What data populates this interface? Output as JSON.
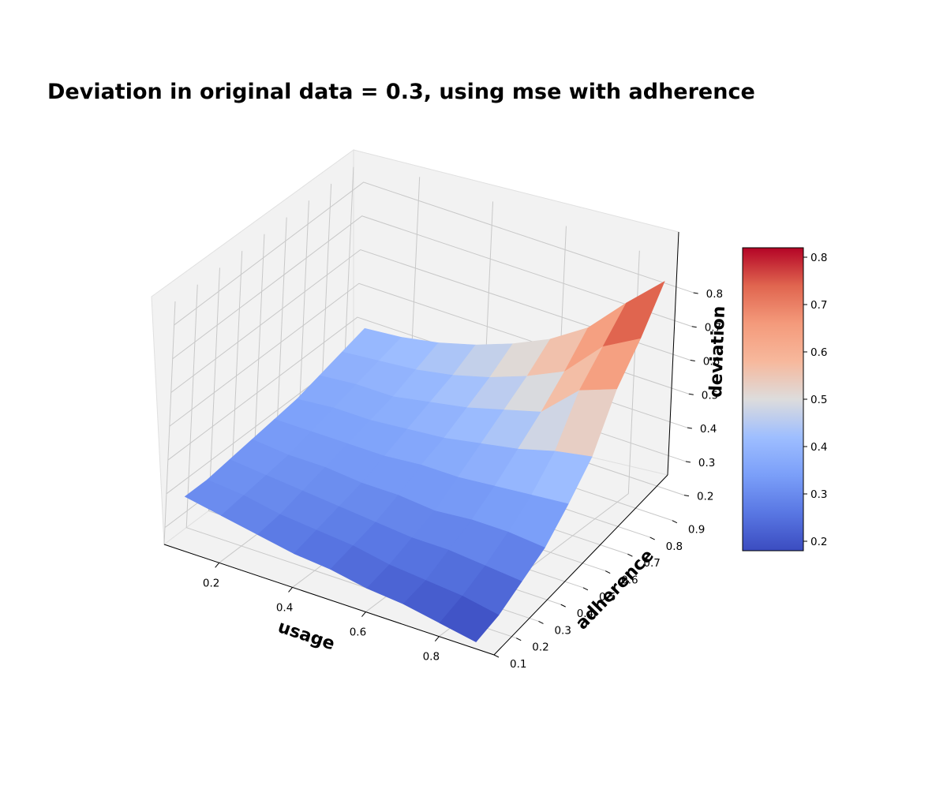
{
  "chart_data": {
    "type": "surface3d",
    "title": "Deviation in original data = 0.3, using mse with adherence",
    "xlabel": "usage",
    "ylabel": "adherence",
    "zlabel": "deviation",
    "colormap": "coolwarm",
    "grid": true,
    "colorbar": {
      "placement": "right",
      "range": [
        0.18,
        0.82
      ],
      "ticks": [
        "0.2",
        "0.3",
        "0.4",
        "0.5",
        "0.6",
        "0.7",
        "0.8"
      ]
    },
    "x_ticks": [
      "0.2",
      "0.4",
      "0.6",
      "0.8"
    ],
    "y_ticks": [
      "0.1",
      "0.2",
      "0.3",
      "0.4",
      "0.5",
      "0.6",
      "0.7",
      "0.8",
      "0.9"
    ],
    "z_ticks": [
      "0.2",
      "0.3",
      "0.4",
      "0.5",
      "0.6",
      "0.7",
      "0.8"
    ],
    "xlim": [
      0.05,
      0.95
    ],
    "ylim": [
      0.1,
      0.95
    ],
    "zlim": [
      0.15,
      0.87
    ],
    "usage": [
      0.1,
      0.2,
      0.3,
      0.4,
      0.5,
      0.6,
      0.7,
      0.8,
      0.9
    ],
    "adherence": [
      0.1,
      0.2,
      0.3,
      0.4,
      0.5,
      0.6,
      0.7,
      0.8,
      0.9
    ],
    "deviation": [
      [
        0.31,
        0.31,
        0.32,
        0.33,
        0.34,
        0.35,
        0.37,
        0.39,
        0.41
      ],
      [
        0.29,
        0.3,
        0.31,
        0.32,
        0.34,
        0.36,
        0.38,
        0.4,
        0.42
      ],
      [
        0.27,
        0.28,
        0.3,
        0.32,
        0.34,
        0.36,
        0.38,
        0.41,
        0.44
      ],
      [
        0.25,
        0.27,
        0.29,
        0.31,
        0.34,
        0.37,
        0.4,
        0.43,
        0.47
      ],
      [
        0.24,
        0.26,
        0.28,
        0.31,
        0.35,
        0.38,
        0.42,
        0.46,
        0.51
      ],
      [
        0.22,
        0.24,
        0.27,
        0.3,
        0.35,
        0.4,
        0.45,
        0.5,
        0.56
      ],
      [
        0.21,
        0.23,
        0.27,
        0.31,
        0.36,
        0.42,
        0.48,
        0.55,
        0.63
      ],
      [
        0.19,
        0.22,
        0.26,
        0.31,
        0.37,
        0.45,
        0.58,
        0.66,
        0.74
      ],
      [
        0.17,
        0.2,
        0.25,
        0.3,
        0.38,
        0.47,
        0.62,
        0.72,
        0.84
      ]
    ]
  }
}
